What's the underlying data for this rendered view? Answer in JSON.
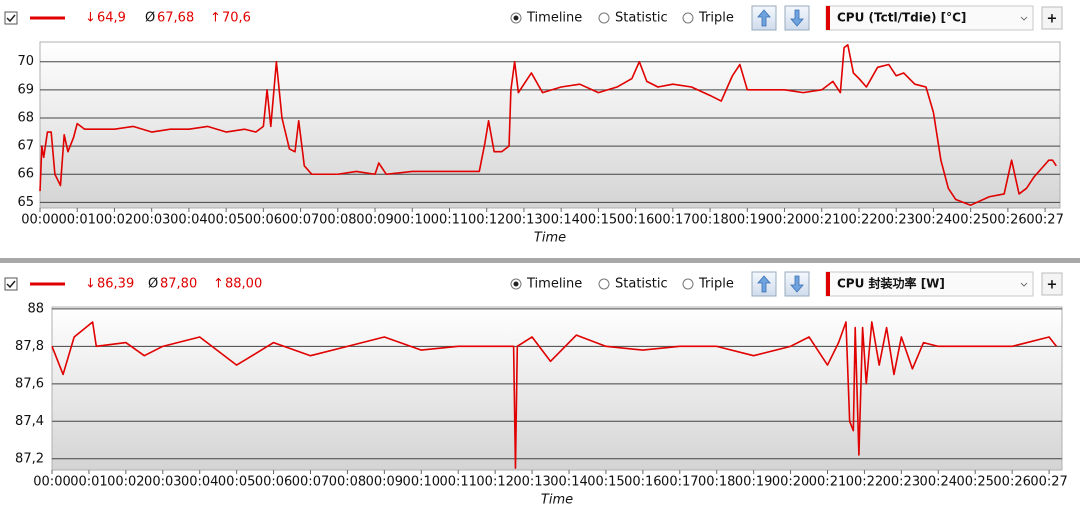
{
  "chart_data": [
    {
      "type": "line",
      "sensor": "CPU (Tctl/Tdie) [°C]",
      "view_options": [
        "Timeline",
        "Statistic",
        "Triple"
      ],
      "selected_view_index": 0,
      "add_button": "+",
      "stats": [
        {
          "symbol": "↓",
          "value": 64.9,
          "label": "64,9"
        },
        {
          "symbol": "Ø",
          "value": 67.68,
          "label": "67,68"
        },
        {
          "symbol": "↑",
          "value": 70.6,
          "label": "70,6"
        }
      ],
      "xlabel": "Time",
      "xlim": [
        0,
        27.4
      ],
      "xticks": [
        {
          "value": 0,
          "label": "00:00"
        },
        {
          "value": 1,
          "label": "00:01"
        },
        {
          "value": 2,
          "label": "00:02"
        },
        {
          "value": 3,
          "label": "00:03"
        },
        {
          "value": 4,
          "label": "00:04"
        },
        {
          "value": 5,
          "label": "00:05"
        },
        {
          "value": 6,
          "label": "00:06"
        },
        {
          "value": 7,
          "label": "00:07"
        },
        {
          "value": 8,
          "label": "00:08"
        },
        {
          "value": 9,
          "label": "00:09"
        },
        {
          "value": 10,
          "label": "00:10"
        },
        {
          "value": 11,
          "label": "00:11"
        },
        {
          "value": 12,
          "label": "00:12"
        },
        {
          "value": 13,
          "label": "00:13"
        },
        {
          "value": 14,
          "label": "00:14"
        },
        {
          "value": 15,
          "label": "00:15"
        },
        {
          "value": 16,
          "label": "00:16"
        },
        {
          "value": 17,
          "label": "00:17"
        },
        {
          "value": 18,
          "label": "00:18"
        },
        {
          "value": 19,
          "label": "00:19"
        },
        {
          "value": 20,
          "label": "00:20"
        },
        {
          "value": 21,
          "label": "00:21"
        },
        {
          "value": 22,
          "label": "00:22"
        },
        {
          "value": 23,
          "label": "00:23"
        },
        {
          "value": 24,
          "label": "00:24"
        },
        {
          "value": 25,
          "label": "00:25"
        },
        {
          "value": 26,
          "label": "00:26"
        },
        {
          "value": 27,
          "label": "00:27"
        }
      ],
      "ylim": [
        64.8,
        70.7
      ],
      "yticks": [
        65,
        66,
        67,
        68,
        69,
        70
      ],
      "grid": true,
      "series": [
        {
          "color": "#e00000",
          "x": [
            0,
            0.05,
            0.1,
            0.2,
            0.3,
            0.4,
            0.55,
            0.65,
            0.75,
            0.9,
            1.0,
            1.2,
            2,
            2.5,
            3,
            3.5,
            4,
            4.5,
            5,
            5.5,
            5.8,
            6.0,
            6.1,
            6.2,
            6.35,
            6.5,
            6.7,
            6.85,
            6.95,
            7.1,
            7.3,
            8,
            8.5,
            9,
            9.1,
            9.3,
            10,
            11,
            11.5,
            11.8,
            11.95,
            12.05,
            12.2,
            12.4,
            12.6,
            12.65,
            12.75,
            12.85,
            13.0,
            13.2,
            13.5,
            14,
            14.5,
            15,
            15.5,
            15.9,
            16.1,
            16.3,
            16.6,
            17,
            17.5,
            18,
            18.3,
            18.6,
            18.8,
            19,
            19.5,
            20,
            20.5,
            21,
            21.3,
            21.5,
            21.6,
            21.7,
            21.85,
            22.0,
            22.2,
            22.5,
            22.8,
            23,
            23.2,
            23.5,
            23.8,
            24,
            24.2,
            24.4,
            24.6,
            25,
            25.5,
            25.9,
            26.1,
            26.3,
            26.5,
            26.7,
            26.9,
            27.1,
            27.2,
            27.3
          ],
          "values": [
            65.4,
            67.0,
            66.6,
            67.5,
            67.5,
            66.0,
            65.6,
            67.4,
            66.8,
            67.3,
            67.8,
            67.6,
            67.6,
            67.7,
            67.5,
            67.6,
            67.6,
            67.7,
            67.5,
            67.6,
            67.5,
            67.7,
            69.0,
            67.7,
            70.0,
            68.0,
            66.9,
            66.8,
            67.9,
            66.3,
            66.0,
            66.0,
            66.1,
            66.0,
            66.4,
            66.0,
            66.1,
            66.1,
            66.1,
            66.1,
            67.1,
            67.9,
            66.8,
            66.8,
            67.0,
            69.0,
            70.0,
            68.9,
            69.2,
            69.6,
            68.9,
            69.1,
            69.2,
            68.9,
            69.1,
            69.4,
            70.0,
            69.3,
            69.1,
            69.2,
            69.1,
            68.8,
            68.6,
            69.5,
            69.9,
            69.0,
            69.0,
            69.0,
            68.9,
            69.0,
            69.3,
            68.9,
            70.5,
            70.6,
            69.6,
            69.4,
            69.1,
            69.8,
            69.9,
            69.5,
            69.6,
            69.2,
            69.1,
            68.2,
            66.5,
            65.5,
            65.1,
            64.9,
            65.2,
            65.3,
            66.5,
            65.3,
            65.5,
            65.9,
            66.2,
            66.5,
            66.5,
            66.3
          ]
        }
      ]
    },
    {
      "type": "line",
      "sensor": "CPU 封装功率 [W]",
      "view_options": [
        "Timeline",
        "Statistic",
        "Triple"
      ],
      "selected_view_index": 0,
      "add_button": "+",
      "stats": [
        {
          "symbol": "↓",
          "value": 86.39,
          "label": "86,39"
        },
        {
          "symbol": "Ø",
          "value": 87.8,
          "label": "87,80"
        },
        {
          "symbol": "↑",
          "value": 88.0,
          "label": "88,00"
        }
      ],
      "xlabel": "Time",
      "xlim": [
        0,
        27.35
      ],
      "xticks": [
        {
          "value": 0,
          "label": "00:00"
        },
        {
          "value": 1,
          "label": "00:01"
        },
        {
          "value": 2,
          "label": "00:02"
        },
        {
          "value": 3,
          "label": "00:03"
        },
        {
          "value": 4,
          "label": "00:04"
        },
        {
          "value": 5,
          "label": "00:05"
        },
        {
          "value": 6,
          "label": "00:06"
        },
        {
          "value": 7,
          "label": "00:07"
        },
        {
          "value": 8,
          "label": "00:08"
        },
        {
          "value": 9,
          "label": "00:09"
        },
        {
          "value": 10,
          "label": "00:10"
        },
        {
          "value": 11,
          "label": "00:11"
        },
        {
          "value": 12,
          "label": "00:12"
        },
        {
          "value": 13,
          "label": "00:13"
        },
        {
          "value": 14,
          "label": "00:14"
        },
        {
          "value": 15,
          "label": "00:15"
        },
        {
          "value": 16,
          "label": "00:16"
        },
        {
          "value": 17,
          "label": "00:17"
        },
        {
          "value": 18,
          "label": "00:18"
        },
        {
          "value": 19,
          "label": "00:19"
        },
        {
          "value": 20,
          "label": "00:20"
        },
        {
          "value": 21,
          "label": "00:21"
        },
        {
          "value": 22,
          "label": "00:22"
        },
        {
          "value": 23,
          "label": "00:23"
        },
        {
          "value": 24,
          "label": "00:24"
        },
        {
          "value": 25,
          "label": "00:25"
        },
        {
          "value": 26,
          "label": "00:26"
        },
        {
          "value": 27,
          "label": "00:27"
        }
      ],
      "ylim": [
        87.14,
        88.01
      ],
      "yticks": [
        {
          "value": 87.2,
          "label": "87,2"
        },
        {
          "value": 87.4,
          "label": "87,4"
        },
        {
          "value": 87.6,
          "label": "87,6"
        },
        {
          "value": 87.8,
          "label": "87,8"
        },
        {
          "value": 88,
          "label": "88"
        }
      ],
      "grid": true,
      "series": [
        {
          "color": "#e00000",
          "x": [
            0,
            0.3,
            0.6,
            1.1,
            1.2,
            2,
            2.5,
            3,
            4,
            5,
            6,
            7,
            8,
            9,
            10,
            11,
            12,
            12.5,
            12.55,
            12.6,
            13,
            13.5,
            14.2,
            15,
            16,
            17,
            18,
            19,
            20,
            20.5,
            21.0,
            21.3,
            21.5,
            21.6,
            21.7,
            21.75,
            21.85,
            21.95,
            22.05,
            22.2,
            22.4,
            22.6,
            22.8,
            23,
            23.3,
            23.6,
            24,
            25,
            26,
            27,
            27.2
          ],
          "values": [
            87.8,
            87.65,
            87.85,
            87.93,
            87.8,
            87.82,
            87.75,
            87.8,
            87.85,
            87.7,
            87.82,
            87.75,
            87.8,
            87.85,
            87.78,
            87.8,
            87.8,
            87.8,
            87.15,
            87.8,
            87.85,
            87.72,
            87.86,
            87.8,
            87.78,
            87.8,
            87.8,
            87.75,
            87.8,
            87.85,
            87.7,
            87.82,
            87.93,
            87.4,
            87.35,
            87.9,
            87.22,
            87.9,
            87.6,
            87.93,
            87.7,
            87.9,
            87.65,
            87.85,
            87.68,
            87.82,
            87.8,
            87.8,
            87.8,
            87.85,
            87.8
          ]
        }
      ]
    }
  ]
}
